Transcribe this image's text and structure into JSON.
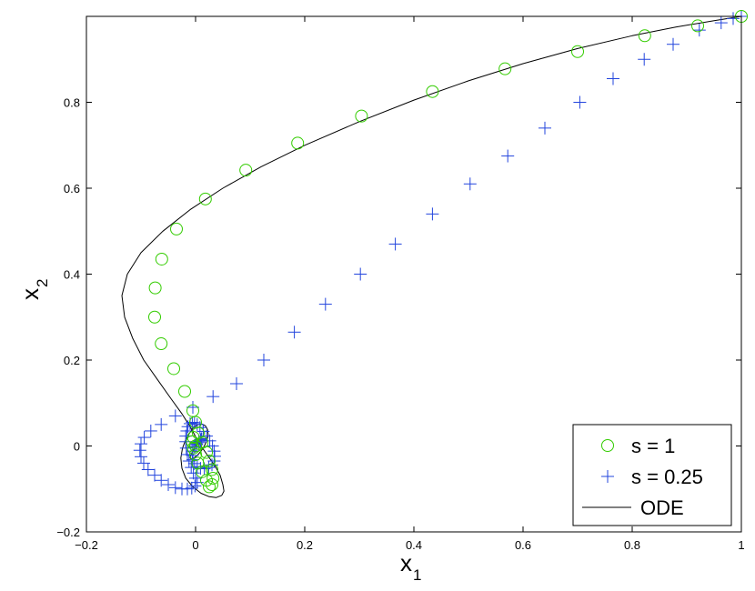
{
  "chart_data": {
    "type": "scatter",
    "xlabel": "x",
    "xlabel_sub": "1",
    "ylabel": "x",
    "ylabel_sub": "2",
    "xlim": [
      -0.2,
      1.0
    ],
    "ylim": [
      -0.2,
      1.0
    ],
    "xticks": [
      -0.2,
      0,
      0.2,
      0.4,
      0.6,
      0.8,
      1
    ],
    "xtick_labels": [
      "−0.2",
      "0",
      "0.2",
      "0.4",
      "0.6",
      "0.8",
      "1"
    ],
    "yticks": [
      -0.2,
      0,
      0.2,
      0.4,
      0.6,
      0.8
    ],
    "ytick_labels": [
      "−0.2",
      "0",
      "0.2",
      "0.4",
      "0.6",
      "0.8"
    ],
    "grid": false,
    "legend_position": "bottom-right",
    "series": [
      {
        "name": "s = 1",
        "marker": "circle",
        "color": "#33cc00",
        "x": [
          1.0,
          0.92,
          0.823,
          0.7,
          0.567,
          0.434,
          0.304,
          0.187,
          0.092,
          0.018,
          -0.035,
          -0.062,
          -0.074,
          -0.075,
          -0.063,
          -0.04,
          -0.02,
          -0.005,
          0.0,
          0.005,
          0.012,
          0.02,
          0.025,
          0.03,
          0.032,
          0.03,
          0.025,
          0.02,
          0.012,
          0.004,
          0.0,
          -0.004,
          -0.006,
          -0.004,
          0.0
        ],
        "y": [
          1.0,
          0.978,
          0.955,
          0.918,
          0.878,
          0.825,
          0.768,
          0.705,
          0.642,
          0.575,
          0.505,
          0.435,
          0.368,
          0.3,
          0.238,
          0.18,
          0.127,
          0.082,
          0.055,
          0.03,
          0.008,
          -0.015,
          -0.035,
          -0.055,
          -0.075,
          -0.09,
          -0.095,
          -0.08,
          -0.06,
          -0.04,
          -0.02,
          -0.005,
          0.01,
          0.02,
          0.0
        ]
      },
      {
        "name": "s = 0.25",
        "marker": "plus",
        "color": "#2244dd",
        "x": [
          1.0,
          0.985,
          0.963,
          0.923,
          0.875,
          0.822,
          0.765,
          0.704,
          0.64,
          0.572,
          0.503,
          0.434,
          0.366,
          0.302,
          0.238,
          0.181,
          0.125,
          0.075,
          0.032,
          -0.005,
          -0.037,
          -0.063,
          -0.082,
          -0.094,
          -0.1,
          -0.102,
          -0.1,
          -0.095,
          -0.087,
          -0.075,
          -0.063,
          -0.05,
          -0.037,
          -0.025,
          -0.015,
          -0.007,
          -0.001,
          0.003,
          0.0,
          -0.004,
          -0.008,
          -0.012,
          -0.015,
          -0.017,
          -0.018,
          -0.018,
          -0.016,
          -0.014,
          -0.01,
          -0.006,
          -0.002,
          0.003,
          0.008,
          0.014,
          0.02,
          0.026,
          0.031,
          0.034,
          0.035,
          0.034,
          0.03,
          0.024,
          0.016,
          0.009,
          0.003,
          -0.002,
          -0.005,
          -0.006,
          -0.005,
          -0.002,
          0.002,
          0.006,
          0.009,
          0.011,
          0.011,
          0.009,
          0.006,
          0.002,
          -0.001
        ],
        "y": [
          1.0,
          0.995,
          0.985,
          0.968,
          0.935,
          0.9,
          0.855,
          0.8,
          0.74,
          0.675,
          0.61,
          0.54,
          0.47,
          0.4,
          0.33,
          0.265,
          0.2,
          0.145,
          0.115,
          0.09,
          0.07,
          0.05,
          0.035,
          0.02,
          0.005,
          -0.01,
          -0.025,
          -0.04,
          -0.055,
          -0.068,
          -0.08,
          -0.09,
          -0.097,
          -0.1,
          -0.1,
          -0.098,
          -0.093,
          -0.085,
          -0.075,
          -0.063,
          -0.05,
          -0.035,
          -0.02,
          -0.005,
          0.01,
          0.023,
          0.035,
          0.045,
          0.052,
          0.055,
          0.054,
          0.05,
          0.043,
          0.034,
          0.023,
          0.012,
          0.0,
          -0.012,
          -0.024,
          -0.035,
          -0.044,
          -0.05,
          -0.053,
          -0.052,
          -0.048,
          -0.041,
          -0.032,
          -0.022,
          -0.012,
          -0.003,
          0.005,
          0.011,
          0.015,
          0.017,
          0.016,
          0.013,
          0.008,
          0.003,
          -0.001
        ]
      },
      {
        "name": "ODE",
        "marker": "line",
        "color": "#000000",
        "x": [
          1.0,
          0.95,
          0.88,
          0.8,
          0.7,
          0.6,
          0.5,
          0.4,
          0.3,
          0.2,
          0.12,
          0.05,
          -0.01,
          -0.06,
          -0.1,
          -0.125,
          -0.135,
          -0.13,
          -0.115,
          -0.095,
          -0.07,
          -0.045,
          -0.025,
          -0.01,
          0.0,
          0.01,
          0.022,
          0.035,
          0.045,
          0.05,
          0.052,
          0.048,
          0.038,
          0.025,
          0.01,
          -0.005,
          -0.018,
          -0.025,
          -0.027,
          -0.024,
          -0.018,
          -0.01,
          -0.003,
          0.005,
          0.012,
          0.018,
          0.022,
          0.023,
          0.021,
          0.016,
          0.01,
          0.003,
          -0.003,
          -0.008,
          -0.01,
          -0.009,
          -0.006,
          -0.002,
          0.002,
          0.005,
          0.006,
          0.005,
          0.002,
          0.0
        ],
        "y": [
          1.0,
          0.99,
          0.975,
          0.955,
          0.925,
          0.89,
          0.85,
          0.805,
          0.755,
          0.7,
          0.65,
          0.6,
          0.55,
          0.5,
          0.45,
          0.4,
          0.35,
          0.3,
          0.25,
          0.2,
          0.155,
          0.11,
          0.075,
          0.045,
          0.022,
          0.0,
          -0.022,
          -0.045,
          -0.068,
          -0.09,
          -0.105,
          -0.115,
          -0.12,
          -0.118,
          -0.11,
          -0.095,
          -0.075,
          -0.052,
          -0.028,
          -0.005,
          0.015,
          0.032,
          0.044,
          0.05,
          0.051,
          0.047,
          0.038,
          0.026,
          0.013,
          0.0,
          -0.012,
          -0.022,
          -0.028,
          -0.03,
          -0.028,
          -0.022,
          -0.014,
          -0.005,
          0.004,
          0.011,
          0.015,
          0.016,
          0.013,
          0.008
        ]
      }
    ]
  }
}
